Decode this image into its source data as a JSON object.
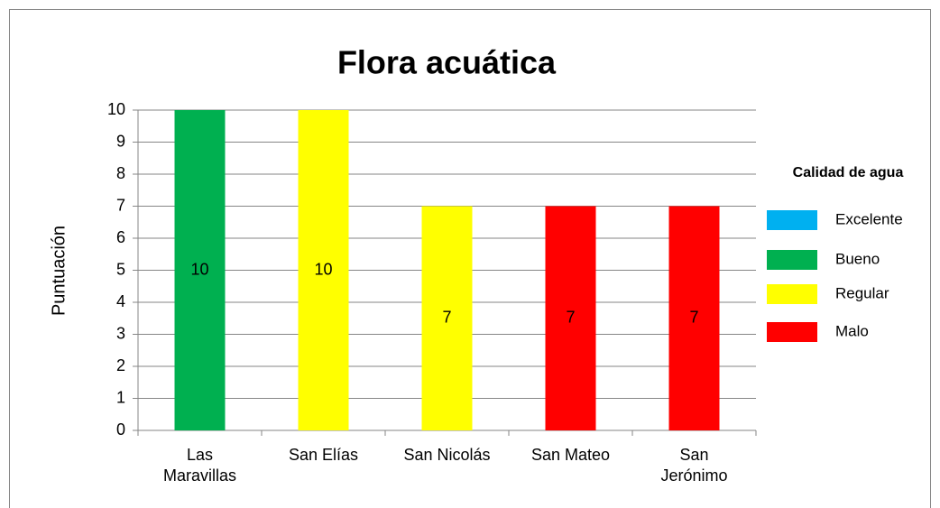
{
  "chart_data": {
    "type": "bar",
    "title": "Flora acuática",
    "y_label": "Puntuación",
    "categories": [
      "Las Maravillas",
      "San Elías",
      "San Nicolás",
      "San Mateo",
      "San Jerónimo"
    ],
    "values": [
      10,
      10,
      7,
      7,
      7
    ],
    "colors": [
      "#00b050",
      "#ffff00",
      "#ffff00",
      "#ff0000",
      "#ff0000"
    ],
    "ylim": [
      0,
      10
    ],
    "yticks": [
      0,
      1,
      2,
      3,
      4,
      5,
      6,
      7,
      8,
      9,
      10
    ],
    "grid": true,
    "legend": {
      "title": "Calidad de agua",
      "position": "right",
      "items": [
        {
          "name": "Excelente",
          "color": "#00b0f0"
        },
        {
          "name": "Bueno",
          "color": "#00b050"
        },
        {
          "name": "Regular",
          "color": "#ffff00"
        },
        {
          "name": "Malo",
          "color": "#ff0000"
        }
      ]
    }
  }
}
